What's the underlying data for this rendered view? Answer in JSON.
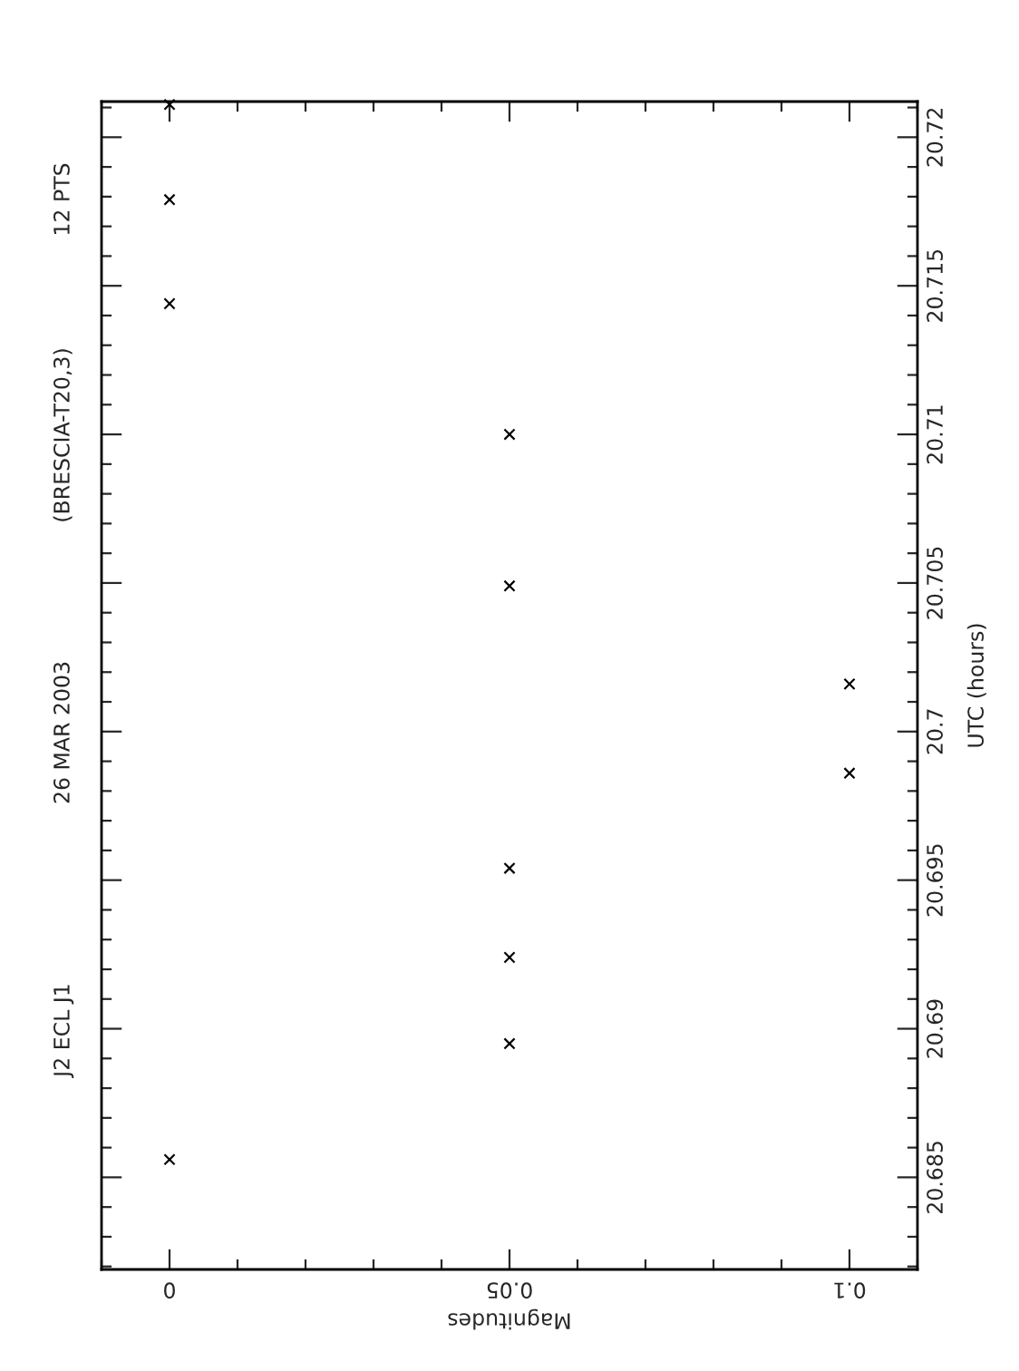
{
  "chart_data": {
    "type": "scatter",
    "title": "J2 ECL J1",
    "subtitle": "26 MAR 2003",
    "annotations": [
      "(BRESCIA-T20,3)",
      "12 PTS"
    ],
    "xlabel": "Magnitudes",
    "ylabel": "UTC (hours)",
    "x": [
      0,
      0,
      0,
      0.05,
      0.05,
      0.1,
      0.1,
      0.05,
      0.05,
      0.05,
      0
    ],
    "series": [
      {
        "color": "#000000",
        "values": [
          20.7211,
          20.7179,
          20.7144,
          20.71,
          20.7049,
          20.7016,
          20.6986,
          20.6954,
          20.6924,
          20.6895,
          20.6856
        ]
      }
    ],
    "ylim": [
      20.6819,
      20.7212
    ],
    "yticks": [
      20.685,
      20.69,
      20.695,
      20.7,
      20.705,
      20.71,
      20.715,
      20.72
    ],
    "xlim": [
      -0.01,
      0.11
    ],
    "xticks": [
      0,
      0.05,
      0.1
    ],
    "marker": "cross",
    "grid": false,
    "legend": false
  }
}
